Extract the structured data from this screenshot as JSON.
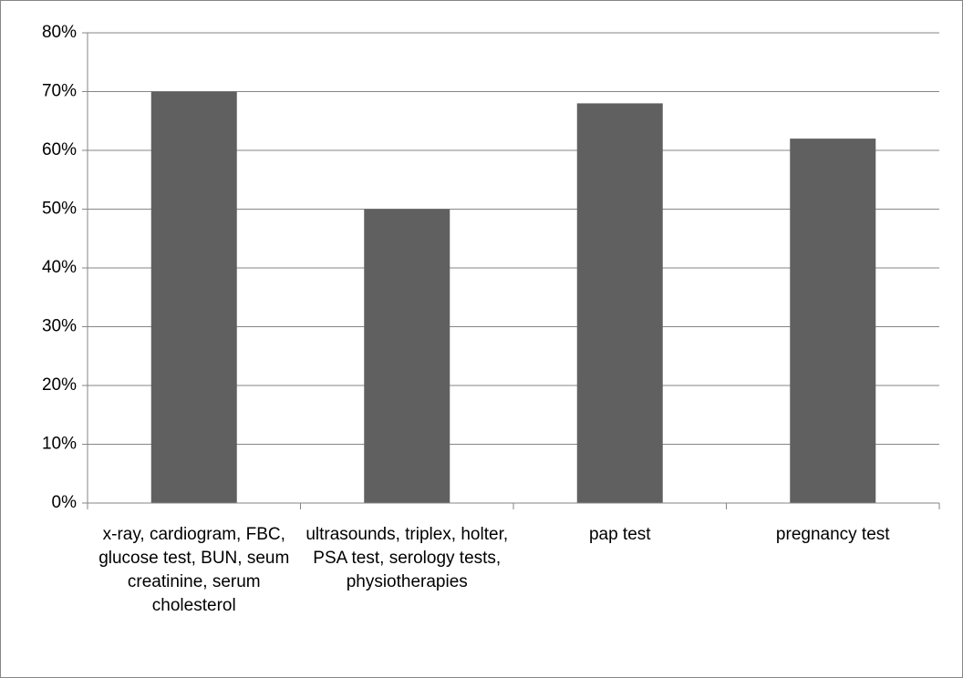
{
  "chart_data": {
    "type": "bar",
    "categories": [
      "x-ray,  cardiogram, FBC, glucose test, BUN, seum creatinine, serum cholesterol",
      "ultrasounds, triplex, holter, PSA test, serology tests, physiotherapies",
      "pap test",
      "pregnancy test"
    ],
    "values": [
      70,
      50,
      68,
      62
    ],
    "color": "#606060",
    "ylim": [
      0,
      80
    ],
    "yticks": [
      {
        "value": 0,
        "label": "0%"
      },
      {
        "value": 10,
        "label": "10%"
      },
      {
        "value": 20,
        "label": "20%"
      },
      {
        "value": 30,
        "label": "30%"
      },
      {
        "value": 40,
        "label": "40%"
      },
      {
        "value": 50,
        "label": "50%"
      },
      {
        "value": 60,
        "label": "60%"
      },
      {
        "value": 70,
        "label": "70%"
      },
      {
        "value": 80,
        "label": "80%"
      }
    ],
    "grid": true
  }
}
